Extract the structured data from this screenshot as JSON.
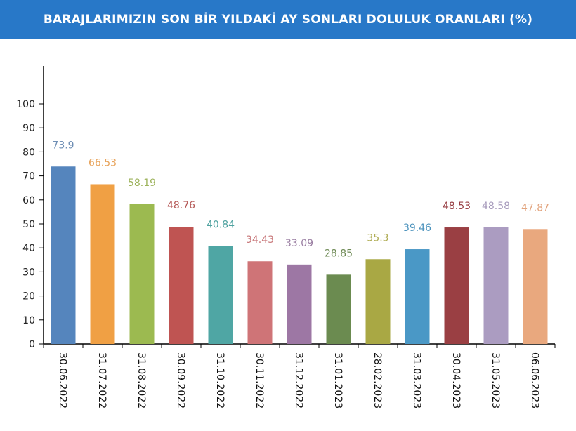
{
  "header": {
    "title": "BARAJLARIMIZIN SON BİR YILDAKİ AY SONLARI DOLULUK ORANLARI (%)",
    "background": "#2878c8"
  },
  "chart_data": {
    "type": "bar",
    "title": "BARAJLARIMIZIN SON BİR YILDAKİ AY SONLARI DOLULUK ORANLARI (%)",
    "xlabel": "",
    "ylabel": "",
    "ylim": [
      0,
      100
    ],
    "yticks": [
      0,
      10,
      20,
      30,
      40,
      50,
      60,
      70,
      80,
      90,
      100
    ],
    "grid": false,
    "categories": [
      "30.06.2022",
      "31.07.2022",
      "31.08.2022",
      "30.09.2022",
      "31.10.2022",
      "30.11.2022",
      "31.12.2022",
      "31.01.2023",
      "28.02.2023",
      "31.03.2023",
      "30.04.2023",
      "31.05.2023",
      "06.06.2023"
    ],
    "values": [
      73.9,
      66.53,
      58.19,
      48.76,
      40.84,
      34.43,
      33.09,
      28.85,
      35.3,
      39.46,
      48.53,
      48.58,
      47.87
    ],
    "value_labels": [
      "73.9",
      "66.53",
      "58.19",
      "48.76",
      "40.84",
      "34.43",
      "33.09",
      "28.85",
      "35.3",
      "39.46",
      "48.53",
      "48.58",
      "47.87"
    ],
    "bar_colors": [
      "#5585bd",
      "#f0a044",
      "#9cba50",
      "#bf5452",
      "#4fa6a4",
      "#cf7477",
      "#9d77a4",
      "#6b8b50",
      "#a9a844",
      "#4a98c6",
      "#9a3f43",
      "#ab9cc1",
      "#e9a87e"
    ],
    "label_colors": [
      "#6f8fb5",
      "#e8a45c",
      "#9cb25a",
      "#b55a58",
      "#4fa2a0",
      "#c97a7c",
      "#9a7ea2",
      "#6e8a55",
      "#b0ad55",
      "#4d93bd",
      "#983f44",
      "#a79bbc",
      "#e2a47e"
    ]
  }
}
